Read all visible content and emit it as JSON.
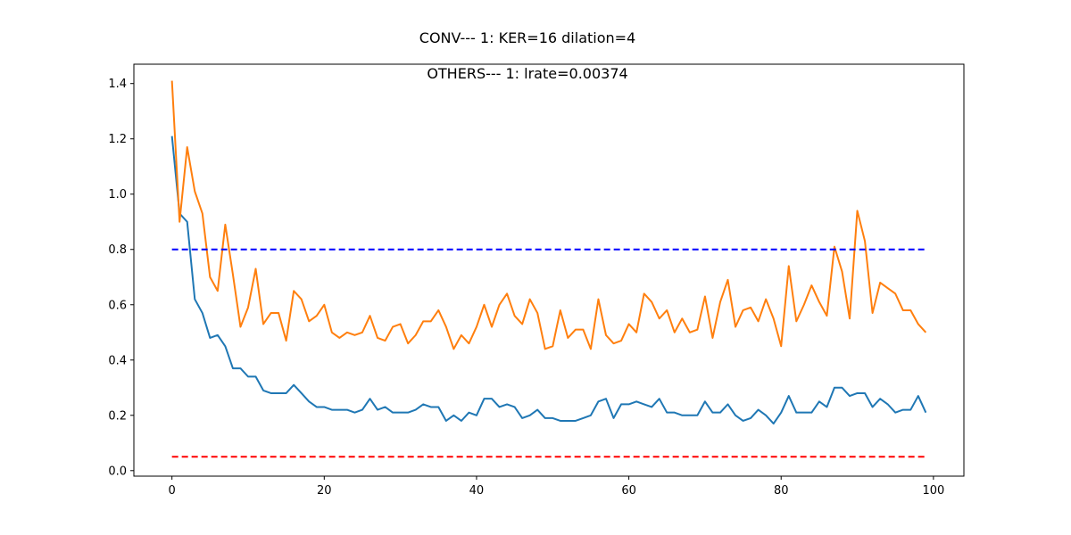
{
  "chart_data": {
    "type": "line",
    "title": "CONV--- 1: KER=16   dilation=4",
    "subtitle": "OTHERS--- 1: lrate=0.00374",
    "xlabel": "",
    "ylabel": "",
    "xlim": [
      -5,
      104
    ],
    "ylim": [
      -0.02,
      1.47
    ],
    "xticks": [
      0,
      20,
      40,
      60,
      80,
      100
    ],
    "yticks": [
      0.0,
      0.2,
      0.4,
      0.6,
      0.8,
      1.0,
      1.2,
      1.4
    ],
    "xtick_labels": [
      "0",
      "20",
      "40",
      "60",
      "80",
      "100"
    ],
    "ytick_labels": [
      "0.0",
      "0.2",
      "0.4",
      "0.6",
      "0.8",
      "1.0",
      "1.2",
      "1.4"
    ],
    "grid": false,
    "legend": "none",
    "reference_lines": [
      {
        "y": 0.8,
        "color": "#0000ff",
        "style": "dashed",
        "x_range": [
          0,
          99
        ]
      },
      {
        "y": 0.05,
        "color": "#ff0000",
        "style": "dashed",
        "x_range": [
          0,
          99
        ]
      }
    ],
    "series": [
      {
        "color": "#1f77b4",
        "values": [
          1.21,
          0.93,
          0.9,
          0.62,
          0.57,
          0.48,
          0.49,
          0.45,
          0.37,
          0.37,
          0.34,
          0.34,
          0.29,
          0.28,
          0.28,
          0.28,
          0.31,
          0.28,
          0.25,
          0.23,
          0.23,
          0.22,
          0.22,
          0.22,
          0.21,
          0.22,
          0.26,
          0.22,
          0.23,
          0.21,
          0.21,
          0.21,
          0.22,
          0.24,
          0.23,
          0.23,
          0.18,
          0.2,
          0.18,
          0.21,
          0.2,
          0.26,
          0.26,
          0.23,
          0.24,
          0.23,
          0.19,
          0.2,
          0.22,
          0.19,
          0.19,
          0.18,
          0.18,
          0.18,
          0.19,
          0.2,
          0.25,
          0.26,
          0.19,
          0.24,
          0.24,
          0.25,
          0.24,
          0.23,
          0.26,
          0.21,
          0.21,
          0.2,
          0.2,
          0.2,
          0.25,
          0.21,
          0.21,
          0.24,
          0.2,
          0.18,
          0.19,
          0.22,
          0.2,
          0.17,
          0.21,
          0.27,
          0.21,
          0.21,
          0.21,
          0.25,
          0.23,
          0.3,
          0.3,
          0.27,
          0.28,
          0.28,
          0.23,
          0.26,
          0.24,
          0.21,
          0.22,
          0.22,
          0.27,
          0.21
        ]
      },
      {
        "color": "#ff7f0e",
        "values": [
          1.41,
          0.9,
          1.17,
          1.01,
          0.93,
          0.7,
          0.65,
          0.89,
          0.71,
          0.52,
          0.59,
          0.73,
          0.53,
          0.57,
          0.57,
          0.47,
          0.65,
          0.62,
          0.54,
          0.56,
          0.6,
          0.5,
          0.48,
          0.5,
          0.49,
          0.5,
          0.56,
          0.48,
          0.47,
          0.52,
          0.53,
          0.46,
          0.49,
          0.54,
          0.54,
          0.58,
          0.52,
          0.44,
          0.49,
          0.46,
          0.52,
          0.6,
          0.52,
          0.6,
          0.64,
          0.56,
          0.53,
          0.62,
          0.57,
          0.44,
          0.45,
          0.58,
          0.48,
          0.51,
          0.51,
          0.44,
          0.62,
          0.49,
          0.46,
          0.47,
          0.53,
          0.5,
          0.64,
          0.61,
          0.55,
          0.58,
          0.5,
          0.55,
          0.5,
          0.51,
          0.63,
          0.48,
          0.61,
          0.69,
          0.52,
          0.58,
          0.59,
          0.54,
          0.62,
          0.55,
          0.45,
          0.74,
          0.54,
          0.6,
          0.67,
          0.61,
          0.56,
          0.81,
          0.72,
          0.55,
          0.94,
          0.83,
          0.57,
          0.68,
          0.66,
          0.64,
          0.58,
          0.58,
          0.53,
          0.5
        ]
      }
    ]
  }
}
